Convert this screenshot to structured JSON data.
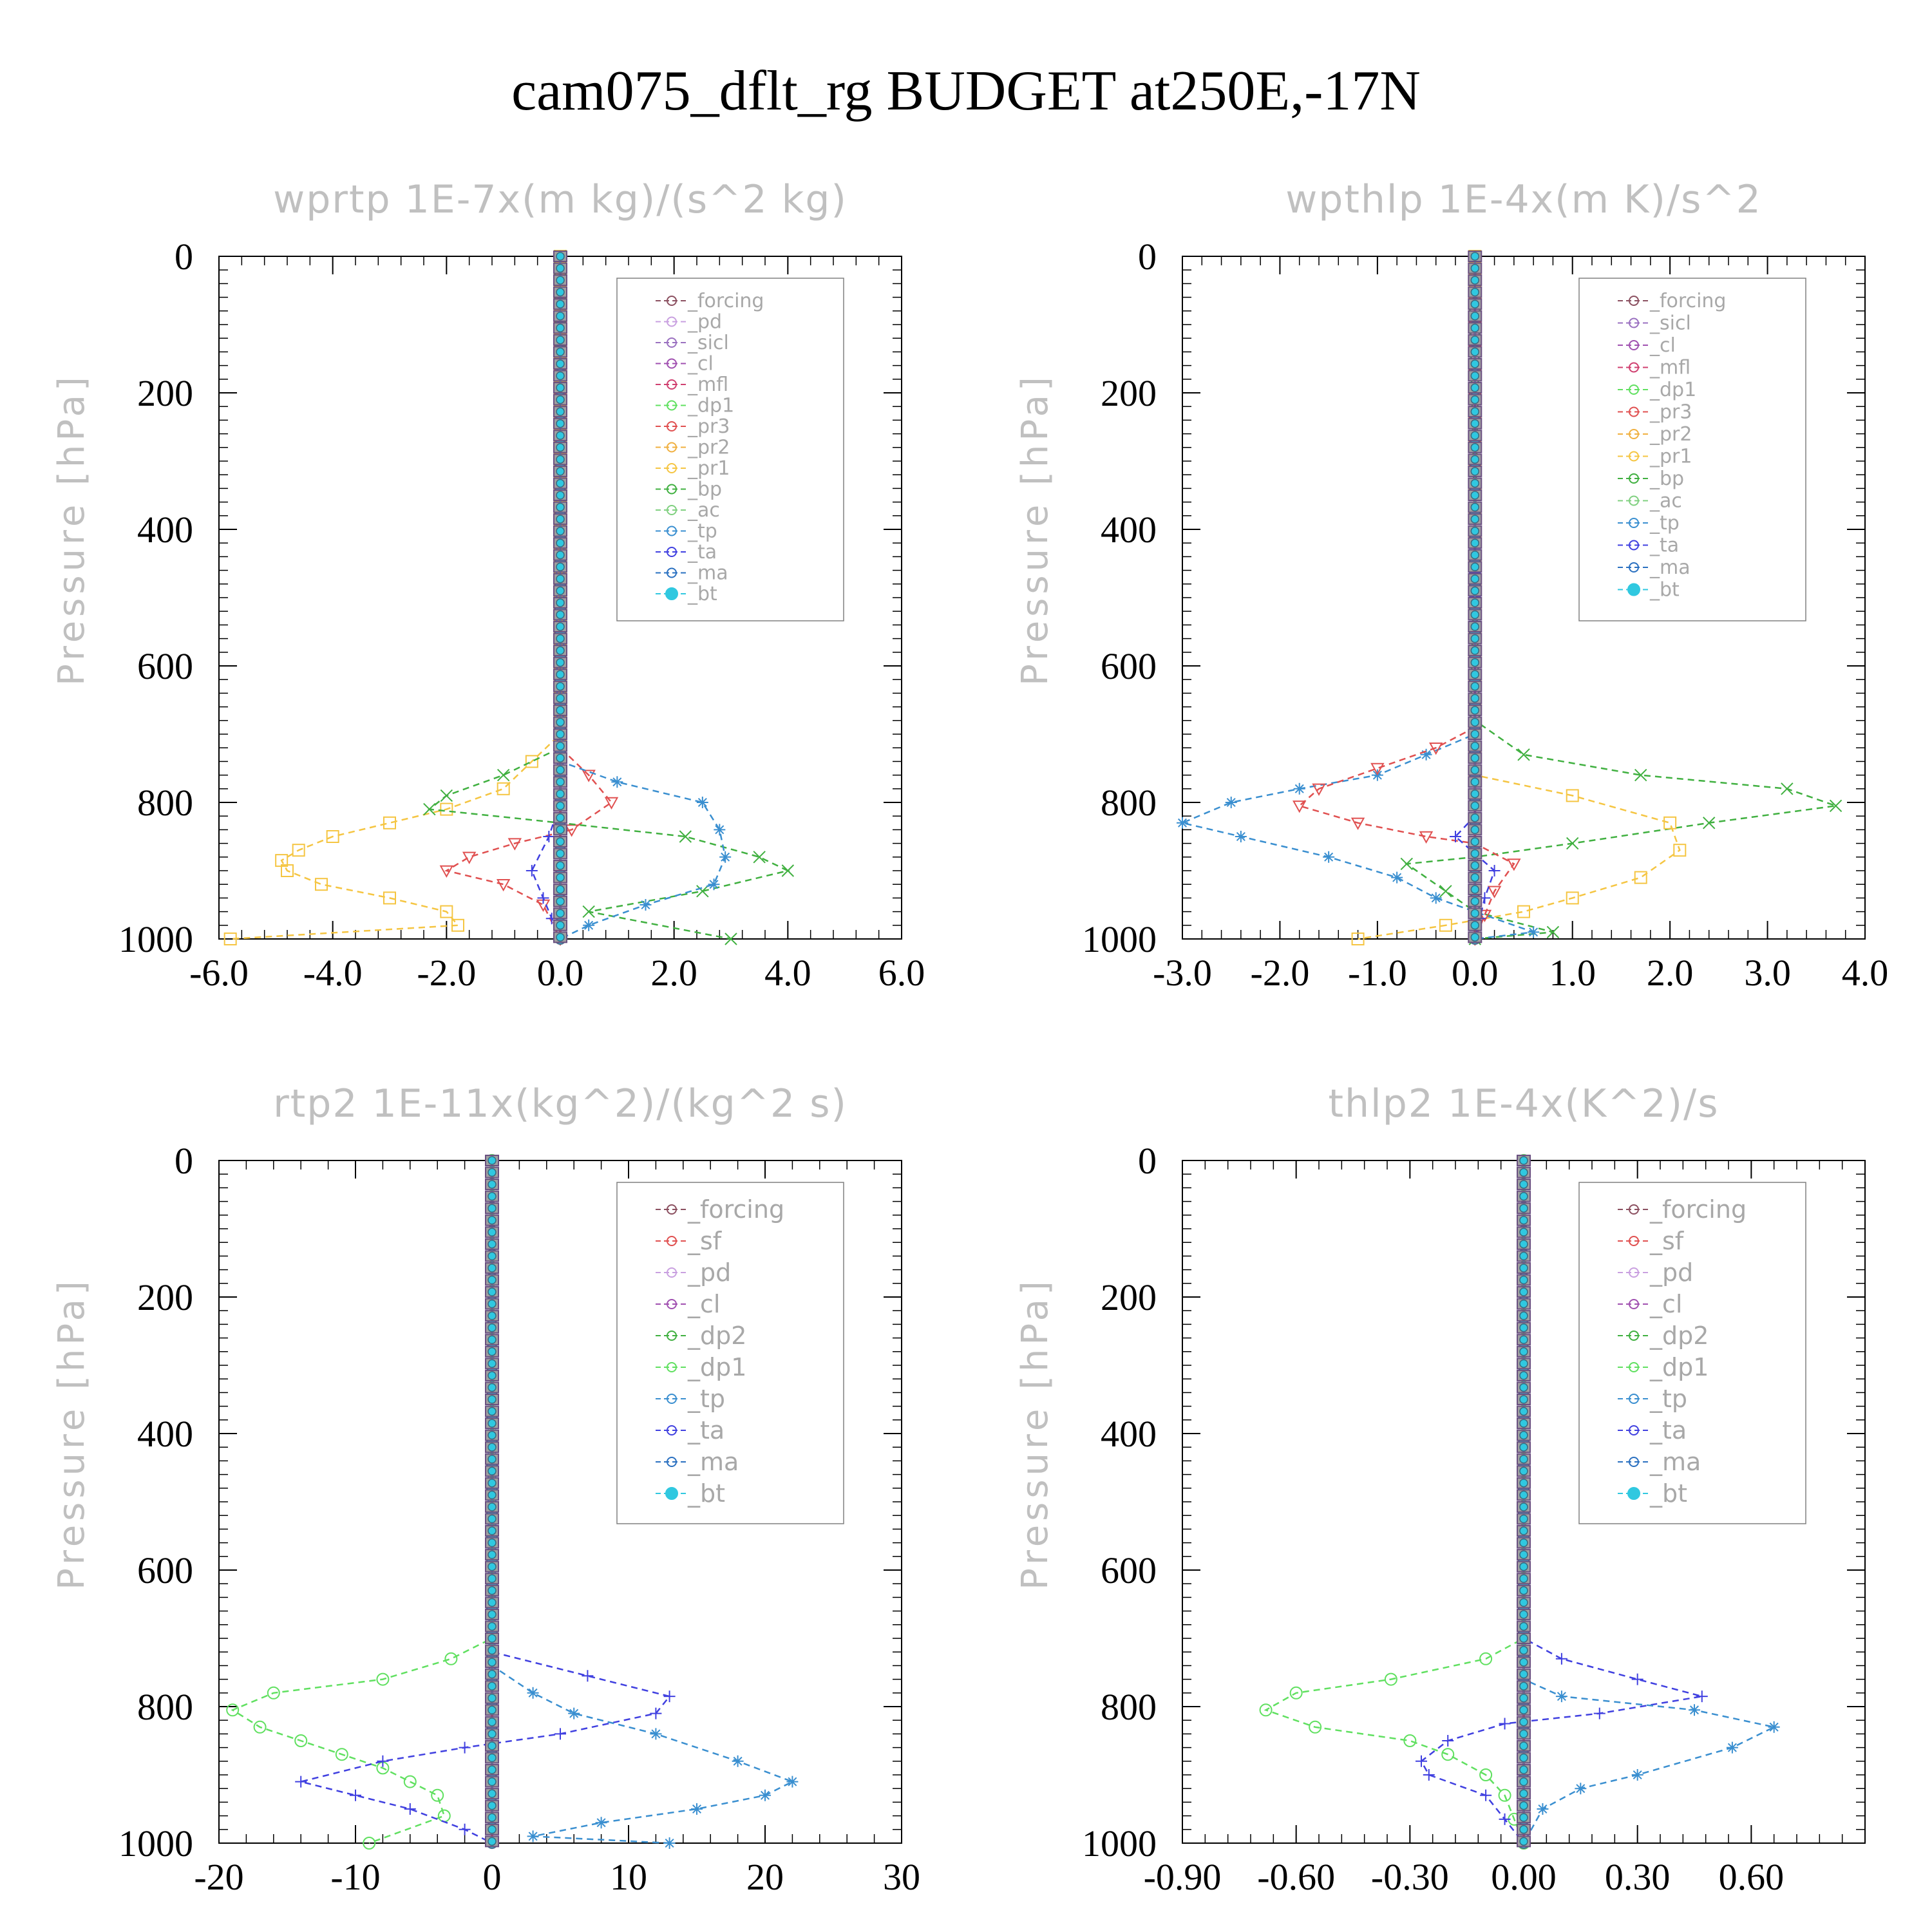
{
  "figure": {
    "title": "cam075_dflt_rg  BUDGET at250E,-17N"
  },
  "chart_data": [
    {
      "type": "line",
      "title": "wprtp  1E-7x(m kg)/(s^2 kg)",
      "ylabel": "Pressure [hPa]",
      "xlim": [
        -6,
        6
      ],
      "ylim": [
        1000,
        0
      ],
      "xticks": [
        -6,
        -4,
        -2,
        0,
        2,
        4,
        6
      ],
      "xtick_labels": [
        "-6.0",
        "-4.0",
        "-2.0",
        "0.0",
        "2.0",
        "4.0",
        "6.0"
      ],
      "yticks": [
        0,
        200,
        400,
        600,
        800,
        1000
      ],
      "ytick_labels": [
        "0",
        "200",
        "400",
        "600",
        "800",
        "1000"
      ],
      "legend": [
        "_forcing",
        "_pd",
        "_sicl",
        "_cl",
        "_mfl",
        "_dp1",
        "_pr3",
        "_pr2",
        "_pr1",
        "_bp",
        "_ac",
        "_tp",
        "_ta",
        "_ma",
        "_bt"
      ],
      "series": [
        {
          "name": "_pr1",
          "color": "#f5c542",
          "marker": "square",
          "points": [
            [
              0,
              0
            ],
            [
              0,
              700
            ],
            [
              -0.5,
              740
            ],
            [
              -1,
              780
            ],
            [
              -2,
              810
            ],
            [
              -3,
              830
            ],
            [
              -4,
              850
            ],
            [
              -4.6,
              870
            ],
            [
              -4.9,
              885
            ],
            [
              -4.8,
              900
            ],
            [
              -4.2,
              920
            ],
            [
              -3,
              940
            ],
            [
              -2,
              960
            ],
            [
              -1.8,
              980
            ],
            [
              -5.8,
              1000
            ]
          ]
        },
        {
          "name": "_pr3",
          "color": "#e05050",
          "marker": "triangle-down",
          "points": [
            [
              0,
              0
            ],
            [
              0,
              720
            ],
            [
              0.5,
              760
            ],
            [
              0.9,
              800
            ],
            [
              0.2,
              840
            ],
            [
              -0.8,
              860
            ],
            [
              -1.6,
              880
            ],
            [
              -2,
              900
            ],
            [
              -1,
              920
            ],
            [
              -0.3,
              950
            ],
            [
              0,
              1000
            ]
          ]
        },
        {
          "name": "_bp",
          "color": "#40b040",
          "marker": "x",
          "points": [
            [
              0,
              0
            ],
            [
              0,
              720
            ],
            [
              -1,
              760
            ],
            [
              -2,
              790
            ],
            [
              -2.3,
              810
            ],
            [
              0,
              830
            ],
            [
              2.2,
              850
            ],
            [
              3.5,
              880
            ],
            [
              4,
              900
            ],
            [
              2.5,
              930
            ],
            [
              0.5,
              960
            ],
            [
              3,
              1000
            ]
          ]
        },
        {
          "name": "_tp",
          "color": "#3a8fd0",
          "marker": "asterisk",
          "points": [
            [
              0,
              0
            ],
            [
              0,
              740
            ],
            [
              1,
              770
            ],
            [
              2.5,
              800
            ],
            [
              2.8,
              840
            ],
            [
              2.9,
              880
            ],
            [
              2.7,
              920
            ],
            [
              1.5,
              950
            ],
            [
              0.5,
              980
            ],
            [
              0,
              1000
            ]
          ]
        },
        {
          "name": "_ta",
          "color": "#4040e0",
          "marker": "plus",
          "points": [
            [
              0,
              0
            ],
            [
              0,
              800
            ],
            [
              -0.2,
              850
            ],
            [
              -0.5,
              900
            ],
            [
              -0.3,
              940
            ],
            [
              0,
              1000
            ]
          ]
        },
        {
          "name": "_bt",
          "color": "#30c8e0",
          "marker": "dot",
          "points": [
            [
              0,
              0
            ],
            [
              0,
              1000
            ]
          ]
        }
      ]
    },
    {
      "type": "line",
      "title": "wpthlp  1E-4x(m K)/s^2",
      "ylabel": "Pressure [hPa]",
      "xlim": [
        -3,
        4
      ],
      "ylim": [
        1000,
        0
      ],
      "xticks": [
        -3,
        -2,
        -1,
        0,
        1,
        2,
        3,
        4
      ],
      "xtick_labels": [
        "-3.0",
        "-2.0",
        "-1.0",
        "0.0",
        "1.0",
        "2.0",
        "3.0",
        "4.0"
      ],
      "yticks": [
        0,
        200,
        400,
        600,
        800,
        1000
      ],
      "ytick_labels": [
        "0",
        "200",
        "400",
        "600",
        "800",
        "1000"
      ],
      "legend": [
        "_forcing",
        "_sicl",
        "_cl",
        "_mfl",
        "_dp1",
        "_pr3",
        "_pr2",
        "_pr1",
        "_bp",
        "_ac",
        "_tp",
        "_ta",
        "_ma",
        "_bt"
      ],
      "series": [
        {
          "name": "_bp",
          "color": "#40b040",
          "marker": "x",
          "points": [
            [
              0,
              0
            ],
            [
              0,
              680
            ],
            [
              0.5,
              730
            ],
            [
              1.7,
              760
            ],
            [
              3.2,
              780
            ],
            [
              3.7,
              805
            ],
            [
              2.4,
              830
            ],
            [
              1,
              860
            ],
            [
              0,
              880
            ],
            [
              -0.7,
              890
            ],
            [
              -0.3,
              930
            ],
            [
              0,
              960
            ],
            [
              0.8,
              990
            ],
            [
              0,
              1000
            ]
          ]
        },
        {
          "name": "_pr1",
          "color": "#f5c542",
          "marker": "square",
          "points": [
            [
              0,
              0
            ],
            [
              0,
              760
            ],
            [
              1,
              790
            ],
            [
              2,
              830
            ],
            [
              2.1,
              870
            ],
            [
              1.7,
              910
            ],
            [
              1,
              940
            ],
            [
              0.5,
              960
            ],
            [
              -0.3,
              980
            ],
            [
              -1.2,
              1000
            ]
          ]
        },
        {
          "name": "_tp",
          "color": "#3a8fd0",
          "marker": "asterisk",
          "points": [
            [
              0,
              0
            ],
            [
              0,
              700
            ],
            [
              -0.5,
              730
            ],
            [
              -1,
              760
            ],
            [
              -1.8,
              780
            ],
            [
              -2.5,
              800
            ],
            [
              -3,
              830
            ],
            [
              -2.4,
              850
            ],
            [
              -1.5,
              880
            ],
            [
              -0.8,
              910
            ],
            [
              -0.4,
              940
            ],
            [
              0,
              960
            ],
            [
              0.6,
              990
            ],
            [
              0,
              1000
            ]
          ]
        },
        {
          "name": "_pr3",
          "color": "#e05050",
          "marker": "triangle-down",
          "points": [
            [
              0,
              0
            ],
            [
              0,
              690
            ],
            [
              -0.4,
              720
            ],
            [
              -1,
              750
            ],
            [
              -1.6,
              780
            ],
            [
              -1.8,
              805
            ],
            [
              -1.2,
              830
            ],
            [
              -0.5,
              850
            ],
            [
              0,
              860
            ],
            [
              0.4,
              890
            ],
            [
              0.2,
              930
            ],
            [
              0,
              1000
            ]
          ]
        },
        {
          "name": "_ta",
          "color": "#4040e0",
          "marker": "plus",
          "points": [
            [
              0,
              0
            ],
            [
              0,
              820
            ],
            [
              -0.2,
              850
            ],
            [
              0.2,
              900
            ],
            [
              0.1,
              940
            ],
            [
              0,
              1000
            ]
          ]
        },
        {
          "name": "_bt",
          "color": "#30c8e0",
          "marker": "dot",
          "points": [
            [
              0,
              0
            ],
            [
              0,
              1000
            ]
          ]
        }
      ]
    },
    {
      "type": "line",
      "title": "rtp2  1E-11x(kg^2)/(kg^2 s)",
      "ylabel": "Pressure [hPa]",
      "xlim": [
        -20,
        30
      ],
      "ylim": [
        1000,
        0
      ],
      "xticks": [
        -20,
        -10,
        0,
        10,
        20,
        30
      ],
      "xtick_labels": [
        "-20",
        "-10",
        "0",
        "10",
        "20",
        "30"
      ],
      "yticks": [
        0,
        200,
        400,
        600,
        800,
        1000
      ],
      "ytick_labels": [
        "0",
        "200",
        "400",
        "600",
        "800",
        "1000"
      ],
      "legend": [
        "_forcing",
        "_sf",
        "_pd",
        "_cl",
        "_dp2",
        "_dp1",
        "_tp",
        "_ta",
        "_ma",
        "_bt"
      ],
      "series": [
        {
          "name": "_dp1",
          "color": "#60e060",
          "marker": "circle",
          "points": [
            [
              0,
              0
            ],
            [
              0,
              700
            ],
            [
              -3,
              730
            ],
            [
              -8,
              760
            ],
            [
              -16,
              780
            ],
            [
              -19,
              805
            ],
            [
              -17,
              830
            ],
            [
              -14,
              850
            ],
            [
              -11,
              870
            ],
            [
              -8,
              890
            ],
            [
              -6,
              910
            ],
            [
              -4,
              930
            ],
            [
              -3.5,
              960
            ],
            [
              -9,
              1000
            ]
          ]
        },
        {
          "name": "_ta",
          "color": "#4040e0",
          "marker": "plus",
          "points": [
            [
              0,
              0
            ],
            [
              0,
              720
            ],
            [
              7,
              755
            ],
            [
              13,
              785
            ],
            [
              12,
              810
            ],
            [
              5,
              840
            ],
            [
              -2,
              860
            ],
            [
              -8,
              880
            ],
            [
              -14,
              910
            ],
            [
              -10,
              930
            ],
            [
              -6,
              950
            ],
            [
              -2,
              980
            ],
            [
              0,
              1000
            ]
          ]
        },
        {
          "name": "_tp",
          "color": "#3a8fd0",
          "marker": "asterisk",
          "points": [
            [
              0,
              0
            ],
            [
              0,
              740
            ],
            [
              3,
              780
            ],
            [
              6,
              810
            ],
            [
              12,
              840
            ],
            [
              18,
              880
            ],
            [
              22,
              910
            ],
            [
              20,
              930
            ],
            [
              15,
              950
            ],
            [
              8,
              970
            ],
            [
              3,
              990
            ],
            [
              13,
              1000
            ]
          ]
        },
        {
          "name": "_bt",
          "color": "#30c8e0",
          "marker": "dot",
          "points": [
            [
              0,
              0
            ],
            [
              0,
              1000
            ]
          ]
        }
      ]
    },
    {
      "type": "line",
      "title": "thlp2  1E-4x(K^2)/s",
      "ylabel": "Pressure [hPa]",
      "xlim": [
        -0.9,
        0.9
      ],
      "ylim": [
        1000,
        0
      ],
      "xticks": [
        -0.9,
        -0.6,
        -0.3,
        0,
        0.3,
        0.6
      ],
      "xtick_labels": [
        "-0.90",
        "-0.60",
        "-0.30",
        "0.00",
        "0.30",
        "0.60"
      ],
      "yticks": [
        0,
        200,
        400,
        600,
        800,
        1000
      ],
      "ytick_labels": [
        "0",
        "200",
        "400",
        "600",
        "800",
        "1000"
      ],
      "legend": [
        "_forcing",
        "_sf",
        "_pd",
        "_cl",
        "_dp2",
        "_dp1",
        "_tp",
        "_ta",
        "_ma",
        "_bt"
      ],
      "series": [
        {
          "name": "_dp1",
          "color": "#60e060",
          "marker": "circle",
          "points": [
            [
              0,
              0
            ],
            [
              0,
              700
            ],
            [
              -0.1,
              730
            ],
            [
              -0.35,
              760
            ],
            [
              -0.6,
              780
            ],
            [
              -0.68,
              805
            ],
            [
              -0.55,
              830
            ],
            [
              -0.3,
              850
            ],
            [
              -0.2,
              870
            ],
            [
              -0.1,
              900
            ],
            [
              -0.05,
              930
            ],
            [
              0,
              1000
            ]
          ]
        },
        {
          "name": "_ta",
          "color": "#4040e0",
          "marker": "plus",
          "points": [
            [
              0,
              0
            ],
            [
              0,
              700
            ],
            [
              0.1,
              730
            ],
            [
              0.3,
              760
            ],
            [
              0.47,
              785
            ],
            [
              0.2,
              810
            ],
            [
              -0.05,
              825
            ],
            [
              -0.2,
              850
            ],
            [
              -0.27,
              880
            ],
            [
              -0.25,
              900
            ],
            [
              -0.1,
              930
            ],
            [
              0,
              1000
            ]
          ]
        },
        {
          "name": "_tp",
          "color": "#3a8fd0",
          "marker": "asterisk",
          "points": [
            [
              0,
              0
            ],
            [
              0,
              760
            ],
            [
              0.1,
              785
            ],
            [
              0.45,
              805
            ],
            [
              0.66,
              830
            ],
            [
              0.55,
              860
            ],
            [
              0.3,
              900
            ],
            [
              0.15,
              920
            ],
            [
              0.05,
              950
            ],
            [
              0,
              1000
            ]
          ]
        },
        {
          "name": "_bt",
          "color": "#30c8e0",
          "marker": "dot",
          "points": [
            [
              0,
              0
            ],
            [
              0,
              1000
            ]
          ]
        }
      ]
    }
  ]
}
